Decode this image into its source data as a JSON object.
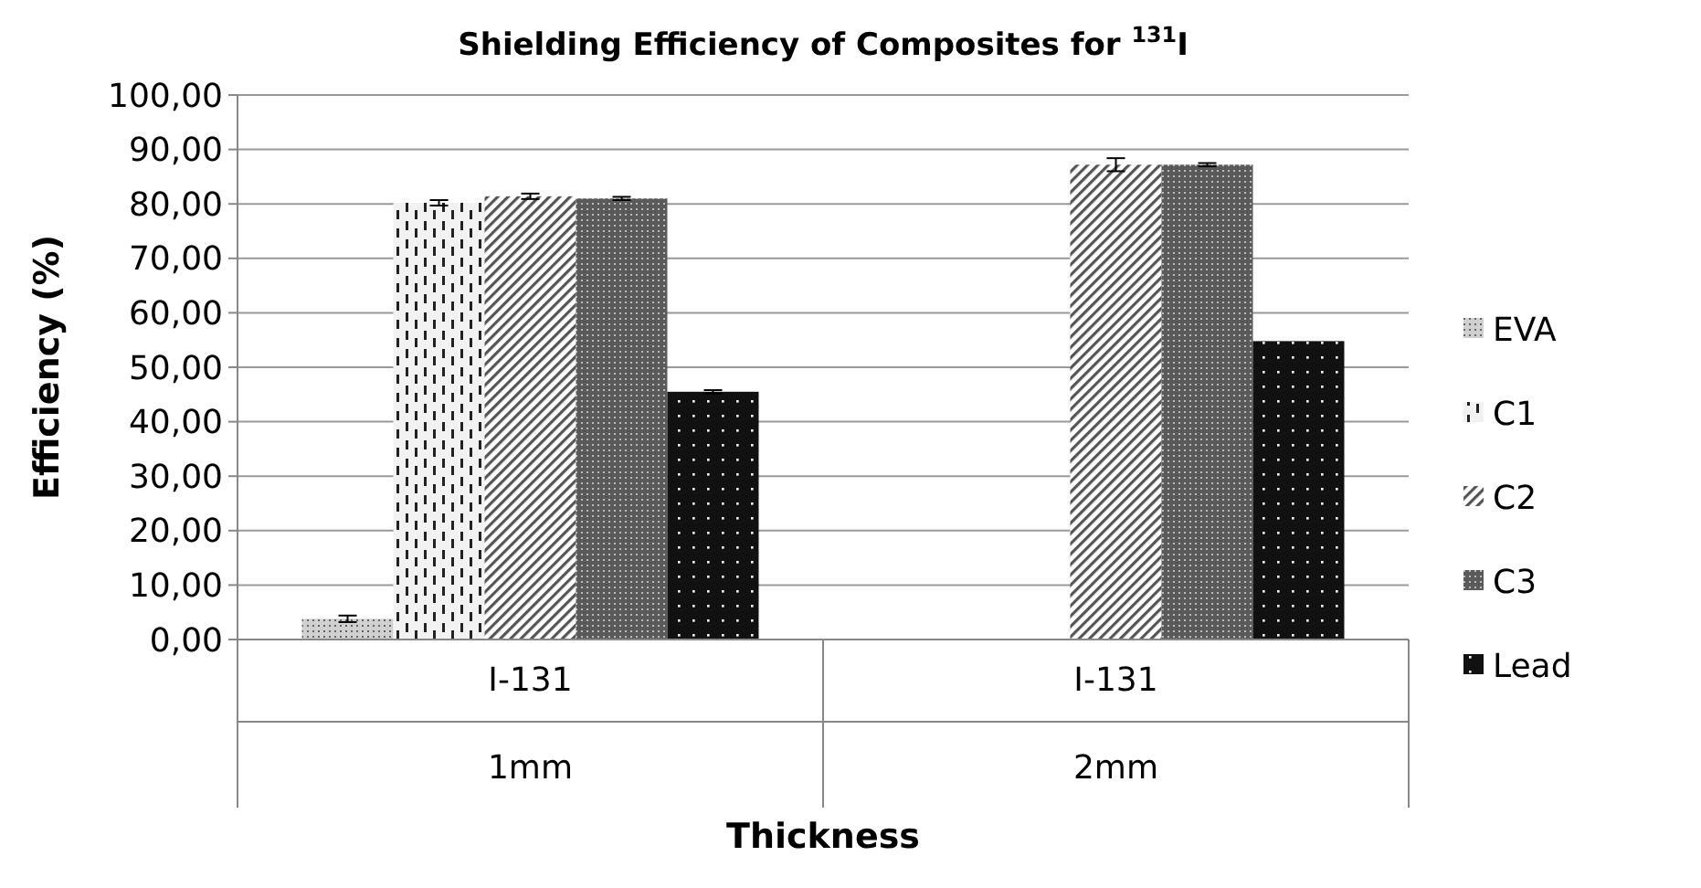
{
  "chart_data": {
    "type": "bar",
    "title": "Shielding Efficiency of Composites for $^{131}$I",
    "xlabel": "Thickness",
    "ylabel": "Efficiency (%)",
    "categories": [
      "I-131\n1mm",
      "I-131\n2mm"
    ],
    "series": [
      {
        "name": "EVA",
        "color": "#d0d0d0",
        "values": [
          3.8,
          null
        ],
        "errors": [
          0.6,
          null
        ]
      },
      {
        "name": "C1",
        "color": "#f2f2f2",
        "values": [
          80.2,
          null
        ],
        "errors": [
          0.5,
          null
        ]
      },
      {
        "name": "C2",
        "color": "#b0b0b0",
        "values": [
          81.4,
          87.2
        ],
        "errors": [
          0.5,
          1.2
        ]
      },
      {
        "name": "C3",
        "color": "#5a5a5a",
        "values": [
          81.0,
          87.2
        ],
        "errors": [
          0.3,
          0.3
        ]
      },
      {
        "name": "Lead",
        "color": "#111111",
        "values": [
          45.5,
          54.8
        ],
        "errors": [
          0.3,
          null
        ]
      }
    ],
    "ylim": [
      0,
      100
    ],
    "yticks": [
      {
        "value": 0,
        "label": "0,00"
      },
      {
        "value": 10,
        "label": "10,00"
      },
      {
        "value": 20,
        "label": "20,00"
      },
      {
        "value": 30,
        "label": "30,00"
      },
      {
        "value": 40,
        "label": "40,00"
      },
      {
        "value": 50,
        "label": "50,00"
      },
      {
        "value": 60,
        "label": "60,00"
      },
      {
        "value": 70,
        "label": "70,00"
      },
      {
        "value": 80,
        "label": "80,00"
      },
      {
        "value": 90,
        "label": "90,00"
      },
      {
        "value": 100,
        "label": "100,00"
      }
    ],
    "grid": "y",
    "legend": "right"
  }
}
